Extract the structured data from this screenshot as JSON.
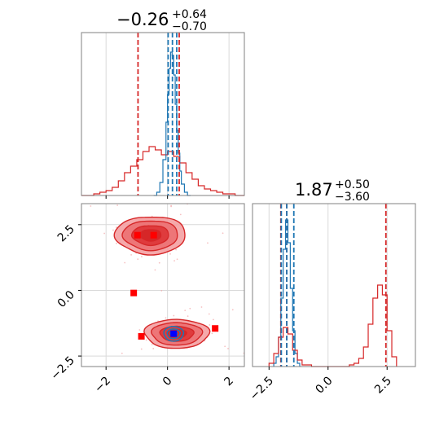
{
  "chart_data": [
    {
      "type": "histogram",
      "panel": "top-left marginal",
      "title_value": "−0.26",
      "title_plus": "+0.64",
      "title_minus": "−0.70",
      "xlim": [
        -2.8,
        2.5
      ],
      "x_ticks": [
        -2,
        0,
        2
      ],
      "quantile_lines_red": [
        -0.96,
        0.38
      ],
      "quantile_lines_blue": [
        0.02,
        0.16,
        0.3
      ],
      "series": [
        {
          "name": "",
          "color": "#d62728",
          "bin_edges": [
            -2.8,
            -2.6,
            -2.4,
            -2.2,
            -2.0,
            -1.8,
            -1.6,
            -1.4,
            -1.2,
            -1.0,
            -0.8,
            -0.6,
            -0.4,
            -0.2,
            0.0,
            0.2,
            0.4,
            0.6,
            0.8,
            1.0,
            1.2,
            1.4,
            1.6,
            1.8,
            2.0,
            2.2,
            2.5
          ],
          "counts": [
            0.0,
            0.0,
            0.01,
            0.02,
            0.03,
            0.05,
            0.09,
            0.14,
            0.18,
            0.22,
            0.27,
            0.3,
            0.28,
            0.25,
            0.27,
            0.24,
            0.2,
            0.14,
            0.1,
            0.06,
            0.04,
            0.03,
            0.02,
            0.01,
            0.01,
            0.0
          ]
        },
        {
          "name": "",
          "color": "#1f77b4",
          "bin_edges": [
            -0.45,
            -0.35,
            -0.25,
            -0.15,
            -0.05,
            0.0,
            0.05,
            0.1,
            0.15,
            0.2,
            0.25,
            0.3,
            0.35,
            0.4,
            0.45,
            0.55,
            0.65,
            0.75
          ],
          "counts": [
            0.0,
            0.02,
            0.08,
            0.22,
            0.45,
            0.62,
            0.78,
            0.88,
            0.86,
            0.74,
            0.56,
            0.4,
            0.26,
            0.15,
            0.07,
            0.02,
            0.0
          ]
        }
      ]
    },
    {
      "type": "histogram",
      "panel": "bottom-right marginal",
      "title_value": "1.87",
      "title_plus": "+0.50",
      "title_minus": "−3.60",
      "xlim": [
        -3.2,
        3.7
      ],
      "x_ticks": [
        -2.5,
        0.0,
        2.5
      ],
      "x_tick_labels": [
        "−2.5",
        "0.0",
        "2.5"
      ],
      "quantile_lines_red": [
        -2.0,
        -1.75,
        2.45
      ],
      "quantile_lines_blue": [
        -1.98,
        -1.75,
        -1.45
      ],
      "series": [
        {
          "name": "",
          "color": "#1f77b4",
          "bin_edges": [
            -2.3,
            -2.2,
            -2.1,
            -2.0,
            -1.9,
            -1.8,
            -1.7,
            -1.6,
            -1.5,
            -1.4,
            -1.3,
            -1.2
          ],
          "counts": [
            0.02,
            0.06,
            0.18,
            0.42,
            0.72,
            0.9,
            0.76,
            0.48,
            0.22,
            0.08,
            0.02
          ]
        },
        {
          "name": "",
          "color": "#d62728",
          "bin_edges": [
            -2.5,
            -2.3,
            -2.1,
            -1.9,
            -1.7,
            -1.5,
            -1.3,
            -1.1,
            -0.9,
            -0.7,
            -0.5,
            0.9,
            1.1,
            1.3,
            1.5,
            1.7,
            1.9,
            2.1,
            2.3,
            2.5,
            2.7,
            2.9
          ],
          "counts": [
            0.02,
            0.08,
            0.18,
            0.24,
            0.2,
            0.1,
            0.04,
            0.01,
            0.01,
            0.0,
            0.0,
            0.01,
            0.02,
            0.05,
            0.12,
            0.26,
            0.42,
            0.5,
            0.44,
            0.22,
            0.06
          ]
        }
      ]
    },
    {
      "type": "contour",
      "panel": "bottom-left 2D",
      "xlim": [
        -2.8,
        2.5
      ],
      "ylim": [
        -2.9,
        3.3
      ],
      "x_ticks": [
        -2,
        0,
        2
      ],
      "y_ticks": [
        -2.5,
        0.0,
        2.5
      ],
      "y_tick_labels": [
        "−2.5",
        "0.0",
        "2.5"
      ],
      "red_modes": [
        {
          "cx": -0.55,
          "cy": 2.1,
          "sx": 1.15,
          "sy": 0.72
        },
        {
          "cx": 0.3,
          "cy": -1.65,
          "sx": 1.05,
          "sy": 0.55
        }
      ],
      "blue_mode": {
        "cx": 0.2,
        "cy": -1.65,
        "sx": 0.32,
        "sy": 0.28
      },
      "red_markers": [
        [
          -0.98,
          2.1
        ],
        [
          -0.45,
          2.1
        ],
        [
          -1.1,
          -0.1
        ],
        [
          -0.85,
          -1.75
        ],
        [
          1.55,
          -1.45
        ]
      ],
      "blue_marker": [
        0.2,
        -1.65
      ]
    }
  ],
  "colors": {
    "red": "#d62728",
    "blue": "#1f77b4",
    "marker_red": "#ff0000",
    "marker_blue": "#0000ff",
    "grid": "#d9d9d9",
    "axes": "#808080"
  }
}
